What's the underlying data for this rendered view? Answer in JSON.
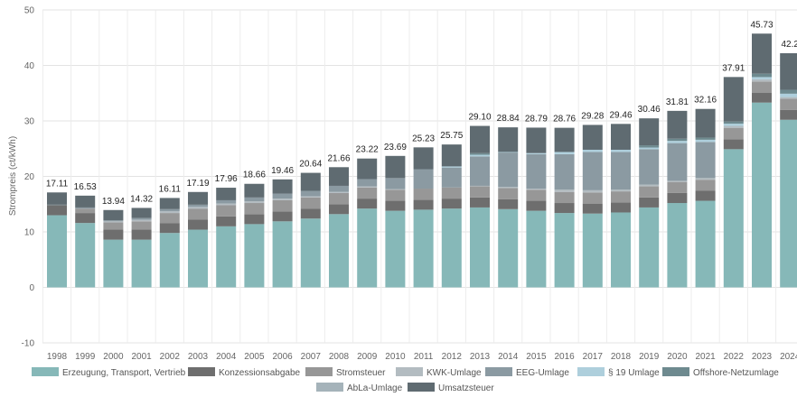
{
  "chart_data": {
    "type": "bar",
    "stacked": true,
    "title": "",
    "xlabel": "",
    "ylabel": "Strompreis (ct/kWh)",
    "ylim": [
      -10,
      50
    ],
    "yticks": [
      -10,
      0,
      10,
      20,
      30,
      40,
      50
    ],
    "grid": true,
    "legend_position": "bottom",
    "categories": [
      "1998",
      "1999",
      "2000",
      "2001",
      "2002",
      "2003",
      "2004",
      "2005",
      "2006",
      "2007",
      "2008",
      "2009",
      "2010",
      "2011",
      "2012",
      "2013",
      "2014",
      "2015",
      "2016",
      "2017",
      "2018",
      "2019",
      "2020",
      "2021",
      "2022",
      "2023",
      "2024"
    ],
    "total_labels": [
      "17.11",
      "16.53",
      "13.94",
      "14.32",
      "16.11",
      "17.19",
      "17.96",
      "18.66",
      "19.46",
      "20.64",
      "21.66",
      "23.22",
      "23.69",
      "25.23",
      "25.75",
      "29.10",
      "28.84",
      "28.79",
      "28.76",
      "29.28",
      "29.46",
      "30.46",
      "31.81",
      "32.16",
      "37.91",
      "45.73",
      "42.2"
    ],
    "series": [
      {
        "name": "Erzeugung, Transport, Vertrieb",
        "color": "#86b8b8",
        "values": [
          13.0,
          11.6,
          8.6,
          8.6,
          9.8,
          10.4,
          11.0,
          11.4,
          11.9,
          12.4,
          13.2,
          14.2,
          13.8,
          14.0,
          14.2,
          14.4,
          14.1,
          13.8,
          13.4,
          13.3,
          13.5,
          14.4,
          15.2,
          15.6,
          24.9,
          33.3,
          30.2
        ]
      },
      {
        "name": "Konzessionsabgabe",
        "color": "#6e6e6e",
        "values": [
          1.8,
          1.8,
          1.8,
          1.8,
          1.8,
          1.8,
          1.8,
          1.8,
          1.8,
          1.8,
          1.8,
          1.8,
          1.8,
          1.8,
          1.8,
          1.8,
          1.8,
          1.8,
          1.8,
          1.8,
          1.8,
          1.8,
          1.8,
          1.8,
          1.8,
          1.8,
          1.8
        ]
      },
      {
        "name": "Stromsteuer",
        "color": "#979797",
        "values": [
          0.0,
          0.8,
          1.3,
          1.5,
          1.8,
          2.0,
          2.0,
          2.0,
          2.0,
          2.0,
          2.0,
          2.0,
          2.0,
          2.0,
          2.0,
          2.0,
          2.0,
          2.0,
          2.0,
          2.0,
          2.0,
          2.0,
          2.0,
          2.0,
          2.0,
          2.0,
          2.0
        ]
      },
      {
        "name": "KWK-Umlage",
        "color": "#b3bcc1",
        "values": [
          0.0,
          0.0,
          0.2,
          0.3,
          0.3,
          0.3,
          0.3,
          0.3,
          0.3,
          0.2,
          0.2,
          0.2,
          0.1,
          0.0,
          0.0,
          0.1,
          0.2,
          0.2,
          0.4,
          0.4,
          0.3,
          0.3,
          0.2,
          0.3,
          0.4,
          0.4,
          0.3
        ]
      },
      {
        "name": "EEG-Umlage",
        "color": "#8b9aa2",
        "values": [
          0.1,
          0.2,
          0.2,
          0.3,
          0.4,
          0.4,
          0.6,
          0.7,
          0.9,
          1.0,
          1.1,
          1.3,
          2.0,
          3.5,
          3.6,
          5.3,
          6.2,
          6.2,
          6.4,
          6.9,
          6.8,
          6.4,
          6.8,
          6.5,
          0.0,
          0.0,
          0.0
        ]
      },
      {
        "name": "§ 19 Umlage",
        "color": "#aecfdc",
        "values": [
          0.0,
          0.0,
          0.0,
          0.0,
          0.0,
          0.0,
          0.0,
          0.0,
          0.0,
          0.0,
          0.0,
          0.0,
          0.0,
          0.0,
          0.2,
          0.3,
          0.1,
          0.2,
          0.4,
          0.4,
          0.4,
          0.3,
          0.4,
          0.4,
          0.4,
          0.4,
          0.6
        ]
      },
      {
        "name": "Offshore-Netzumlage",
        "color": "#6e8a8f",
        "values": [
          0.0,
          0.0,
          0.0,
          0.0,
          0.0,
          0.0,
          0.0,
          0.0,
          0.0,
          0.0,
          0.0,
          0.0,
          0.0,
          0.0,
          0.0,
          0.3,
          0.0,
          0.0,
          0.0,
          0.0,
          0.0,
          0.4,
          0.4,
          0.4,
          0.4,
          0.6,
          0.7
        ]
      },
      {
        "name": "AbLa-Umlage",
        "color": "#a5b3ba",
        "values": [
          0.0,
          0.0,
          0.0,
          0.0,
          0.0,
          0.0,
          0.0,
          0.0,
          0.0,
          0.0,
          0.0,
          0.0,
          0.0,
          0.0,
          0.0,
          0.0,
          0.0,
          0.0,
          0.0,
          0.0,
          0.0,
          0.0,
          0.0,
          0.0,
          0.0,
          0.0,
          0.0
        ]
      },
      {
        "name": "Umsatzsteuer",
        "color": "#5f6b71",
        "values": [
          2.21,
          2.13,
          1.84,
          1.82,
          2.01,
          2.29,
          2.26,
          2.46,
          2.56,
          3.24,
          3.36,
          3.72,
          3.99,
          3.93,
          3.95,
          4.9,
          4.44,
          4.59,
          4.36,
          4.48,
          4.66,
          4.86,
          5.01,
          5.16,
          8.01,
          7.23,
          6.6
        ]
      }
    ]
  }
}
